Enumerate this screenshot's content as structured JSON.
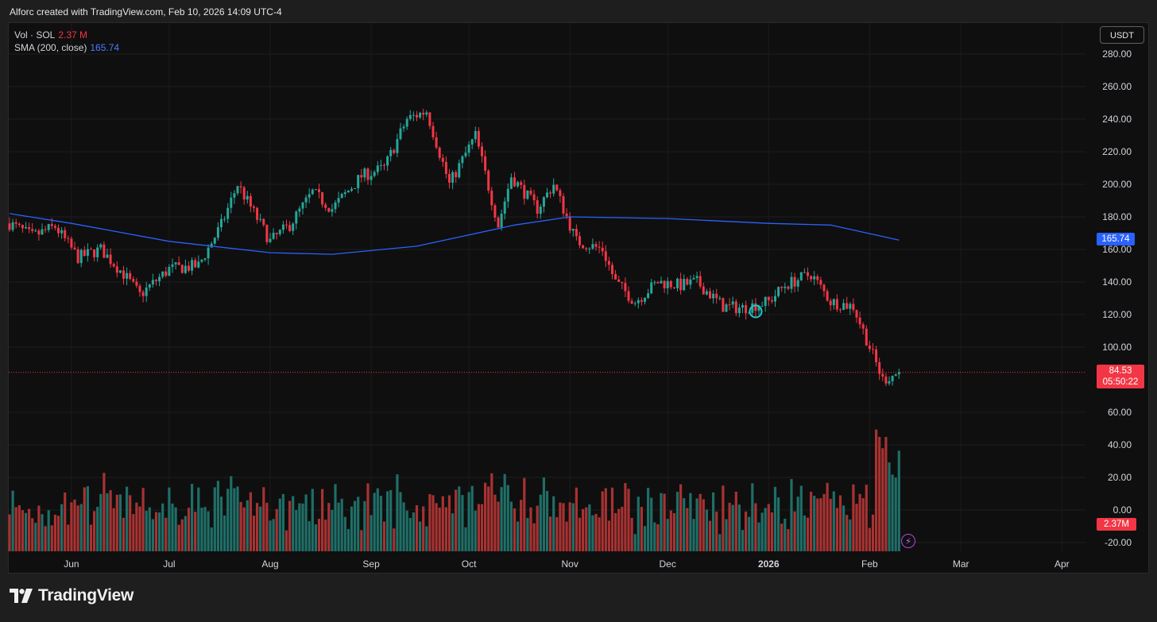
{
  "header": {
    "attribution": "Alforc created with TradingView.com, Feb 10, 2026 14:09 UTC-4"
  },
  "legend": {
    "vol_label": "Vol · SOL",
    "vol_value": "2.37 M",
    "sma_label": "SMA (200, close)",
    "sma_value": "165.74"
  },
  "currency_button": "USDT",
  "price_tags": {
    "sma": "165.74",
    "last_price": "84.53",
    "countdown": "05:50:22",
    "volume": "2.37M"
  },
  "footer": {
    "brand": "TradingView"
  },
  "colors": {
    "up": "#26a69a",
    "down": "#f23645",
    "sma": "#2962ff",
    "background": "#0f0f0f"
  },
  "chart_data": {
    "type": "candlestick",
    "symbol": "SOL",
    "quote": "USDT",
    "ylim": [
      -25,
      290
    ],
    "y_ticks": [
      "280.00",
      "260.00",
      "240.00",
      "220.00",
      "200.00",
      "180.00",
      "160.00",
      "140.00",
      "120.00",
      "100.00",
      "60.00",
      "40.00",
      "20.00",
      "0.00",
      "-20.00"
    ],
    "x_labels": [
      "Jun",
      "Jul",
      "Aug",
      "Sep",
      "Oct",
      "Nov",
      "Dec",
      "2026",
      "Feb",
      "Mar",
      "Apr"
    ],
    "last_price": 84.53,
    "close_path": [
      {
        "date": "2025-05-13",
        "close": 176
      },
      {
        "date": "2025-05-20",
        "close": 168
      },
      {
        "date": "2025-05-27",
        "close": 174
      },
      {
        "date": "2025-06-03",
        "close": 155
      },
      {
        "date": "2025-06-10",
        "close": 160
      },
      {
        "date": "2025-06-17",
        "close": 145
      },
      {
        "date": "2025-06-22",
        "close": 132
      },
      {
        "date": "2025-07-01",
        "close": 148
      },
      {
        "date": "2025-07-10",
        "close": 150
      },
      {
        "date": "2025-07-17",
        "close": 175
      },
      {
        "date": "2025-07-22",
        "close": 200
      },
      {
        "date": "2025-08-01",
        "close": 165
      },
      {
        "date": "2025-08-07",
        "close": 175
      },
      {
        "date": "2025-08-14",
        "close": 195
      },
      {
        "date": "2025-08-20",
        "close": 185
      },
      {
        "date": "2025-08-29",
        "close": 205
      },
      {
        "date": "2025-09-05",
        "close": 210
      },
      {
        "date": "2025-09-12",
        "close": 240
      },
      {
        "date": "2025-09-18",
        "close": 245
      },
      {
        "date": "2025-09-25",
        "close": 200
      },
      {
        "date": "2025-10-03",
        "close": 230
      },
      {
        "date": "2025-10-10",
        "close": 175
      },
      {
        "date": "2025-10-14",
        "close": 205
      },
      {
        "date": "2025-10-22",
        "close": 185
      },
      {
        "date": "2025-10-27",
        "close": 200
      },
      {
        "date": "2025-11-03",
        "close": 165
      },
      {
        "date": "2025-11-11",
        "close": 160
      },
      {
        "date": "2025-11-15",
        "close": 140
      },
      {
        "date": "2025-11-21",
        "close": 128
      },
      {
        "date": "2025-11-28",
        "close": 140
      },
      {
        "date": "2025-12-05",
        "close": 138
      },
      {
        "date": "2025-12-10",
        "close": 140
      },
      {
        "date": "2025-12-18",
        "close": 125
      },
      {
        "date": "2025-12-24",
        "close": 124
      },
      {
        "date": "2026-01-01",
        "close": 128
      },
      {
        "date": "2026-01-06",
        "close": 138
      },
      {
        "date": "2026-01-14",
        "close": 145
      },
      {
        "date": "2026-01-20",
        "close": 128
      },
      {
        "date": "2026-01-27",
        "close": 125
      },
      {
        "date": "2026-02-01",
        "close": 100
      },
      {
        "date": "2026-02-05",
        "close": 80
      },
      {
        "date": "2026-02-10",
        "close": 84.53
      }
    ],
    "sma": {
      "name": "SMA (200, close)",
      "points": [
        {
          "date": "2025-05-13",
          "value": 182
        },
        {
          "date": "2025-06-01",
          "value": 176
        },
        {
          "date": "2025-07-01",
          "value": 165
        },
        {
          "date": "2025-08-01",
          "value": 158
        },
        {
          "date": "2025-08-20",
          "value": 157
        },
        {
          "date": "2025-09-15",
          "value": 162
        },
        {
          "date": "2025-10-15",
          "value": 175
        },
        {
          "date": "2025-11-01",
          "value": 180
        },
        {
          "date": "2025-12-01",
          "value": 179
        },
        {
          "date": "2026-01-01",
          "value": 176
        },
        {
          "date": "2026-01-20",
          "value": 175
        },
        {
          "date": "2026-02-10",
          "value": 165.74
        }
      ]
    },
    "volume": {
      "last_value": "2.37M"
    }
  }
}
